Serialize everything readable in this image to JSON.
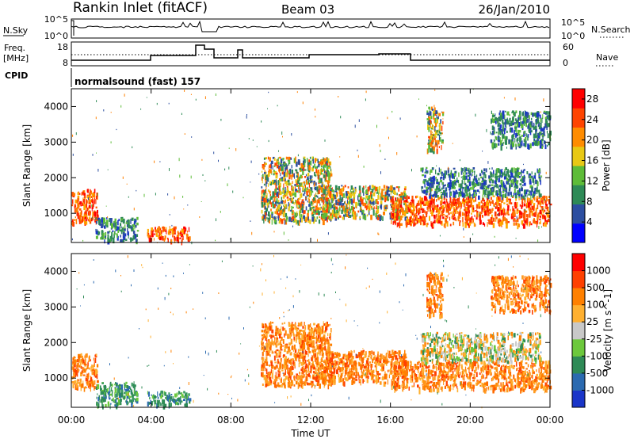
{
  "header": {
    "station": "Rankin Inlet (fitACF)",
    "beam": "Beam 03",
    "date": "26/Jan/2010"
  },
  "status_panels": {
    "nsky_label": "N.Sky",
    "nsky_ticks": [
      "10^5",
      "10^0"
    ],
    "nsearch_label": "N.Search",
    "nsearch_ticks": [
      "10^5",
      "10^0"
    ],
    "freq_label_line1": "Freq.",
    "freq_label_line2": "[MHz]",
    "freq_ticks": [
      "18",
      "8"
    ],
    "nave_label": "Nave",
    "nave_ticks": [
      "60",
      "0"
    ],
    "cpid_label": "CPID",
    "cpid_text": "normalsound (fast) 157"
  },
  "chart_data": [
    {
      "type": "heatmap",
      "panel": "power",
      "ylabel": "Slant Range [km]",
      "xlabel": "Time UT",
      "x_ticks": [
        "00:00",
        "04:00",
        "08:00",
        "12:00",
        "16:00",
        "20:00",
        "00:00"
      ],
      "y_ticks": [
        "1000",
        "2000",
        "3000",
        "4000"
      ],
      "ylim": [
        180,
        4500
      ],
      "xlim_hours": [
        0,
        24
      ],
      "colorbar": {
        "label": "Power [dB]",
        "ticks": [
          "4",
          "8",
          "12",
          "16",
          "20",
          "24",
          "28"
        ],
        "range": [
          0,
          30
        ],
        "colors": [
          "#0000ff",
          "#2c4ea0",
          "#2e8a56",
          "#5ebc38",
          "#e8c814",
          "#ff8c00",
          "#ff4400",
          "#ff0000"
        ]
      },
      "echo_regions": [
        {
          "t0": 0.0,
          "t1": 1.3,
          "r0": 750,
          "r1": 1700,
          "level": "strong"
        },
        {
          "t0": 1.2,
          "t1": 3.3,
          "r0": 250,
          "r1": 900,
          "level": "weak"
        },
        {
          "t0": 3.8,
          "t1": 5.9,
          "r0": 250,
          "r1": 650,
          "level": "strong"
        },
        {
          "t0": 9.5,
          "t1": 13.0,
          "r0": 800,
          "r1": 2600,
          "level": "mixed"
        },
        {
          "t0": 12.5,
          "t1": 16.8,
          "r0": 900,
          "r1": 1800,
          "level": "mixed"
        },
        {
          "t0": 16.0,
          "t1": 24.0,
          "r0": 700,
          "r1": 1500,
          "level": "strong"
        },
        {
          "t0": 17.5,
          "t1": 23.5,
          "r0": 1500,
          "r1": 2300,
          "level": "weak"
        },
        {
          "t0": 17.8,
          "t1": 18.6,
          "r0": 2800,
          "r1": 4000,
          "level": "mixed"
        },
        {
          "t0": 21.0,
          "t1": 24.0,
          "r0": 2900,
          "r1": 3900,
          "level": "weak"
        }
      ]
    },
    {
      "type": "heatmap",
      "panel": "velocity",
      "ylabel": "Slant Range [km]",
      "xlabel": "Time UT",
      "x_ticks": [
        "00:00",
        "04:00",
        "08:00",
        "12:00",
        "16:00",
        "20:00",
        "00:00"
      ],
      "y_ticks": [
        "1000",
        "2000",
        "3000",
        "4000"
      ],
      "ylim": [
        180,
        4500
      ],
      "xlim_hours": [
        0,
        24
      ],
      "colorbar": {
        "label": "Velocity [m s^-1]",
        "ticks": [
          "1000",
          "500",
          "100",
          "25",
          "-25",
          "-100",
          "-500",
          "-1000"
        ],
        "colors": [
          "#1a35c8",
          "#2b6ab0",
          "#2e8a56",
          "#6cc83c",
          "#c8c8c8",
          "#ffb030",
          "#ff8000",
          "#ff4000",
          "#ff0000"
        ]
      },
      "echo_regions": [
        {
          "t0": 0.0,
          "t1": 1.3,
          "r0": 750,
          "r1": 1700,
          "level": "receding"
        },
        {
          "t0": 1.2,
          "t1": 3.3,
          "r0": 250,
          "r1": 900,
          "level": "toward"
        },
        {
          "t0": 3.8,
          "t1": 5.9,
          "r0": 250,
          "r1": 650,
          "level": "toward"
        },
        {
          "t0": 9.5,
          "t1": 13.0,
          "r0": 800,
          "r1": 2600,
          "level": "receding"
        },
        {
          "t0": 12.5,
          "t1": 16.8,
          "r0": 900,
          "r1": 1800,
          "level": "receding"
        },
        {
          "t0": 16.0,
          "t1": 24.0,
          "r0": 700,
          "r1": 1500,
          "level": "receding"
        },
        {
          "t0": 17.5,
          "t1": 23.5,
          "r0": 1500,
          "r1": 2300,
          "level": "mixed"
        },
        {
          "t0": 17.8,
          "t1": 18.6,
          "r0": 2800,
          "r1": 4000,
          "level": "receding"
        },
        {
          "t0": 21.0,
          "t1": 24.0,
          "r0": 2900,
          "r1": 3900,
          "level": "receding"
        }
      ]
    }
  ]
}
